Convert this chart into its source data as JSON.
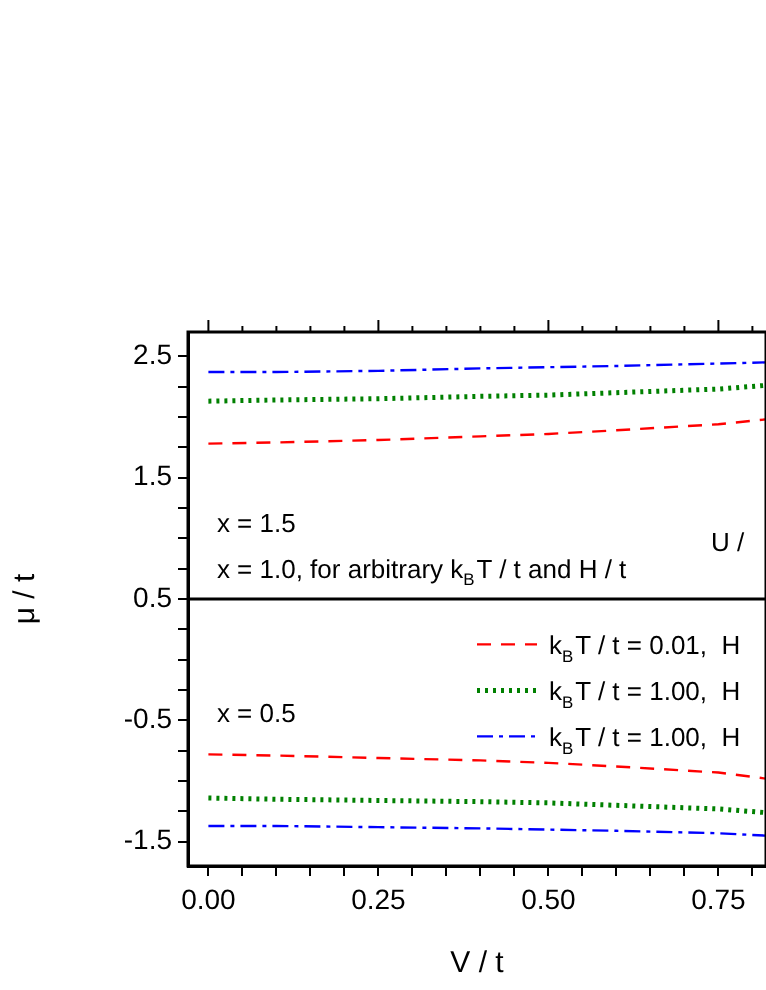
{
  "chart_data": {
    "type": "line",
    "xlabel": "V / t",
    "ylabel": "μ / t",
    "x": [
      0,
      0.1,
      0.25,
      0.4,
      0.5,
      0.6,
      0.75,
      0.82
    ],
    "series": [
      {
        "name": "k$_{B}$T / t = 0.01,  H",
        "color": "#ff0000",
        "line_style": "dashed",
        "values": [
          1.78,
          1.79,
          1.81,
          1.84,
          1.86,
          1.89,
          1.94,
          1.98
        ]
      },
      {
        "name": "k$_{B}$T / t = 1.00,  H",
        "color": "#008000",
        "line_style": "dotted",
        "values": [
          2.13,
          2.14,
          2.15,
          2.17,
          2.18,
          2.2,
          2.23,
          2.26
        ]
      },
      {
        "name": "k$_{B}$T / t = 1.00,  H",
        "color": "#0000ff",
        "line_style": "dashdot",
        "values": [
          2.37,
          2.37,
          2.38,
          2.4,
          2.41,
          2.42,
          2.44,
          2.45
        ]
      },
      {
        "color": "#ff0000",
        "line_style": "dashed",
        "values": [
          -0.78,
          -0.79,
          -0.81,
          -0.83,
          -0.85,
          -0.88,
          -0.93,
          -0.98
        ]
      },
      {
        "color": "#008000",
        "line_style": "dotted",
        "values": [
          -1.14,
          -1.15,
          -1.16,
          -1.17,
          -1.18,
          -1.2,
          -1.23,
          -1.26
        ]
      },
      {
        "color": "#0000ff",
        "line_style": "dashdot",
        "values": [
          -1.37,
          -1.37,
          -1.38,
          -1.39,
          -1.4,
          -1.41,
          -1.43,
          -1.45
        ]
      }
    ],
    "xlim": [
      -0.03,
      0.82
    ],
    "ylim": [
      -1.7,
      2.7
    ],
    "xticks": [
      {
        "value": 0,
        "label": "0.00"
      },
      {
        "value": 0.05,
        "label": null
      },
      {
        "value": 0.1,
        "label": null
      },
      {
        "value": 0.15,
        "label": null
      },
      {
        "value": 0.2,
        "label": null
      },
      {
        "value": 0.25,
        "label": "0.25"
      },
      {
        "value": 0.3,
        "label": null
      },
      {
        "value": 0.35,
        "label": null
      },
      {
        "value": 0.4,
        "label": null
      },
      {
        "value": 0.45,
        "label": null
      },
      {
        "value": 0.5,
        "label": "0.50"
      },
      {
        "value": 0.55,
        "label": null
      },
      {
        "value": 0.6,
        "label": null
      },
      {
        "value": 0.65,
        "label": null
      },
      {
        "value": 0.7,
        "label": null
      },
      {
        "value": 0.75,
        "label": "0.75"
      },
      {
        "value": 0.8,
        "label": null
      }
    ],
    "yticks": [
      {
        "value": -1.5,
        "label": "-1.5"
      },
      {
        "value": -1.25,
        "label": null
      },
      {
        "value": -1,
        "label": null
      },
      {
        "value": -0.75,
        "label": null
      },
      {
        "value": -0.5,
        "label": "-0.5"
      },
      {
        "value": -0.25,
        "label": null
      },
      {
        "value": 0,
        "label": null
      },
      {
        "value": 0.25,
        "label": null
      },
      {
        "value": 0.5,
        "label": "0.5"
      },
      {
        "value": 0.75,
        "label": null
      },
      {
        "value": 1,
        "label": null
      },
      {
        "value": 1.25,
        "label": null
      },
      {
        "value": 1.5,
        "label": "1.5"
      },
      {
        "value": 1.75,
        "label": null
      },
      {
        "value": 2,
        "label": null
      },
      {
        "value": 2.25,
        "label": null
      },
      {
        "value": 2.5,
        "label": "2.5"
      }
    ],
    "ref_lines": [
      {
        "axis": "y",
        "value": 0.5,
        "color": "#000000",
        "line_style": "solid"
      }
    ],
    "annotations": [
      "x = 1.5",
      "U /",
      "x = 1.0, for arbitrary k$_{B}$T / t and H / t",
      "x = 0.5"
    ],
    "legend": "right",
    "grid": false,
    "marker": "none"
  }
}
